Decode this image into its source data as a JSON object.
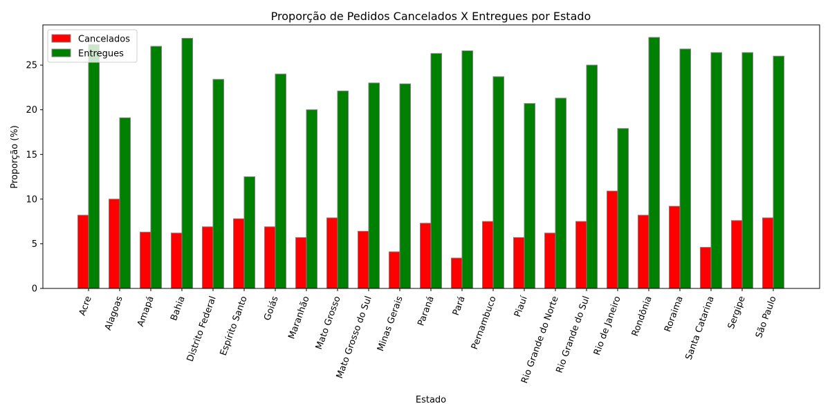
{
  "chart_data": {
    "type": "bar",
    "title": "Proporção de Pedidos Cancelados X Entregues por Estado",
    "xlabel": "Estado",
    "ylabel": "Proporção (%)",
    "ylim": [
      0,
      29.5
    ],
    "yticks": [
      0,
      5,
      10,
      15,
      20,
      25
    ],
    "grid": false,
    "legend_position": "top-left",
    "categories": [
      "Acre",
      "Alagoas",
      "Amapá",
      "Bahia",
      "Distrito Federal",
      "Espírito Santo",
      "Goiás",
      "Maranhão",
      "Mato Grosso",
      "Mato Grosso do Sul",
      "Minas Gerais",
      "Paraná",
      "Pará",
      "Pernambuco",
      "Piauí",
      "Rio Grande do Norte",
      "Rio Grande do Sul",
      "Rio de Janeiro",
      "Rondônia",
      "Roraima",
      "Santa Catarina",
      "Sergipe",
      "São Paulo"
    ],
    "series": [
      {
        "name": "Cancelados",
        "color": "#ff0000",
        "values": [
          8.2,
          10.0,
          6.3,
          6.2,
          6.9,
          7.8,
          6.9,
          5.7,
          7.9,
          6.4,
          4.1,
          7.3,
          3.4,
          7.5,
          5.7,
          6.2,
          7.5,
          10.9,
          8.2,
          9.2,
          4.6,
          7.6,
          7.9
        ]
      },
      {
        "name": "Entregues",
        "color": "#008000",
        "values": [
          27.3,
          19.1,
          27.1,
          28.0,
          23.4,
          12.5,
          24.0,
          20.0,
          22.1,
          23.0,
          22.9,
          26.3,
          26.6,
          23.7,
          20.7,
          21.3,
          25.0,
          17.9,
          28.1,
          26.8,
          26.4,
          26.4,
          26.0
        ]
      }
    ]
  }
}
